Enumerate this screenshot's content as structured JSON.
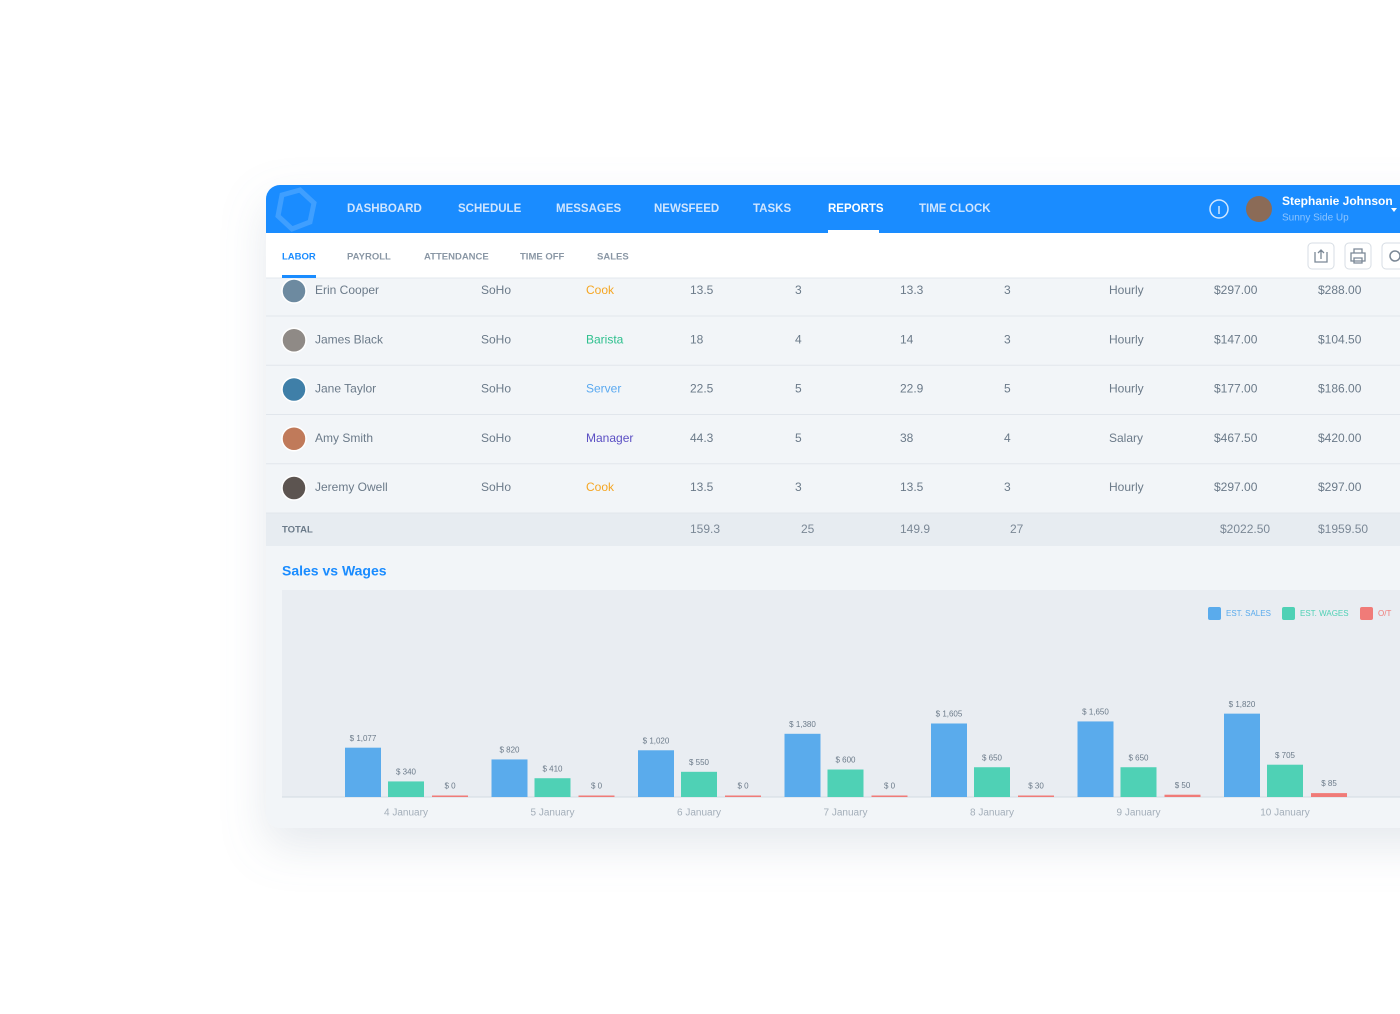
{
  "nav": {
    "items": [
      "DASHBOARD",
      "SCHEDULE",
      "MESSAGES",
      "NEWSFEED",
      "TASKS",
      "REPORTS",
      "TIME CLOCK"
    ],
    "active": 5
  },
  "user": {
    "name": "Stephanie Johnson",
    "workspace": "Sunny Side Up"
  },
  "tabs": {
    "items": [
      "LABOR",
      "PAYROLL",
      "ATTENDANCE",
      "TIME OFF",
      "SALES"
    ],
    "active": 0
  },
  "table": {
    "rows": [
      {
        "name": "Erin Cooper",
        "location": "SoHo",
        "role": "Cook",
        "role_color": "#f5a623",
        "cells": [
          "13.5",
          "3",
          "13.3",
          "3",
          "Hourly",
          "$297.00",
          "$288.00"
        ]
      },
      {
        "name": "James Black",
        "location": "SoHo",
        "role": "Barista",
        "role_color": "#2ec08e",
        "cells": [
          "18",
          "4",
          "14",
          "3",
          "Hourly",
          "$147.00",
          "$104.50"
        ]
      },
      {
        "name": "Jane Taylor",
        "location": "SoHo",
        "role": "Server",
        "role_color": "#5aa9f0",
        "cells": [
          "22.5",
          "5",
          "22.9",
          "5",
          "Hourly",
          "$177.00",
          "$186.00"
        ]
      },
      {
        "name": "Amy Smith",
        "location": "SoHo",
        "role": "Manager",
        "role_color": "#5b4fc4",
        "cells": [
          "44.3",
          "5",
          "38",
          "4",
          "Salary",
          "$467.50",
          "$420.00"
        ]
      },
      {
        "name": "Jeremy Owell",
        "location": "SoHo",
        "role": "Cook",
        "role_color": "#f5a623",
        "cells": [
          "13.5",
          "3",
          "13.5",
          "3",
          "Hourly",
          "$297.00",
          "$297.00"
        ]
      }
    ],
    "total": {
      "label": "TOTAL",
      "cells": [
        "159.3",
        "25",
        "149.9",
        "27",
        null,
        "$2022.50",
        "$1959.50"
      ]
    }
  },
  "chart_data": {
    "type": "bar",
    "title": "Sales vs Wages",
    "categories": [
      "4 January",
      "5 January",
      "6 January",
      "7 January",
      "8 January",
      "9 January",
      "10 January"
    ],
    "series": [
      {
        "name": "EST. SALES",
        "color": "#5aabec",
        "values": [
          1077,
          820,
          1020,
          1380,
          1605,
          1650,
          1820
        ],
        "value_labels": [
          "$ 1,077",
          "$ 820",
          "$ 1,020",
          "$ 1,380",
          "$ 1,605",
          "$ 1,650",
          "$ 1,820"
        ]
      },
      {
        "name": "EST. WAGES",
        "color": "#4fd1b5",
        "values": [
          340,
          410,
          550,
          600,
          650,
          650,
          705
        ],
        "value_labels": [
          "$ 340",
          "$ 410",
          "$ 550",
          "$ 600",
          "$ 650",
          "$ 650",
          "$ 705"
        ]
      },
      {
        "name": "O/T",
        "color": "#f07b78",
        "values": [
          0,
          0,
          0,
          0,
          30,
          50,
          85
        ],
        "value_labels": [
          "$ 0",
          "$ 0",
          "$ 0",
          "$ 0",
          "$ 30",
          "$ 50",
          "$ 85"
        ]
      }
    ],
    "legend": "top-right"
  }
}
